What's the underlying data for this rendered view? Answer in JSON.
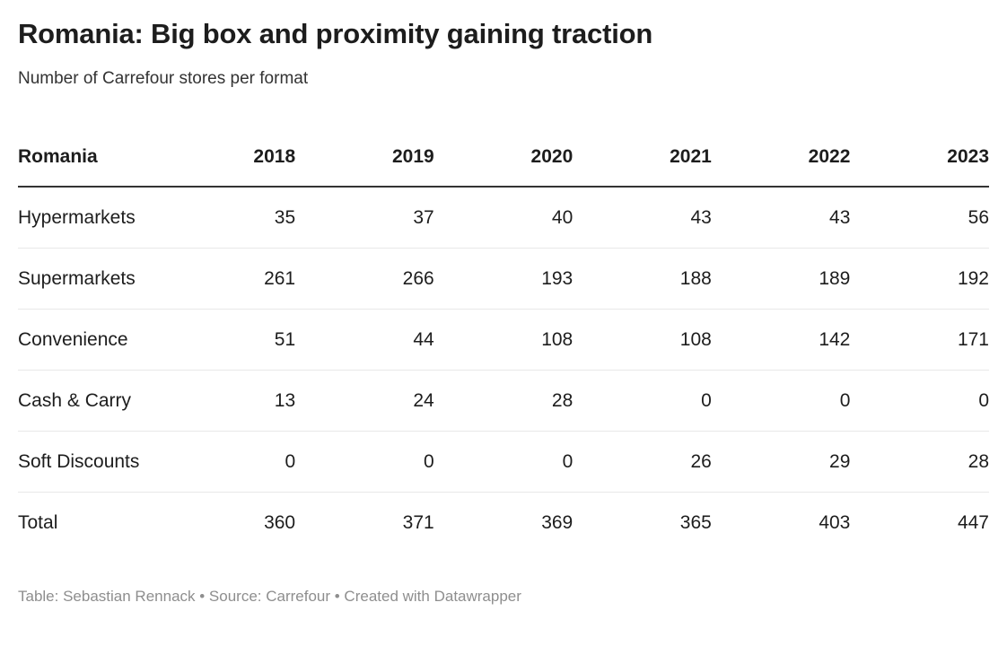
{
  "title": "Romania: Big box and proximity gaining traction",
  "subtitle": "Number of Carrefour stores per format",
  "table": {
    "corner_header": "Romania",
    "year_columns": [
      "2018",
      "2019",
      "2020",
      "2021",
      "2022",
      "2023"
    ],
    "rows": [
      {
        "label": "Hypermarkets",
        "values": [
          "35",
          "37",
          "40",
          "43",
          "43",
          "56"
        ]
      },
      {
        "label": "Supermarkets",
        "values": [
          "261",
          "266",
          "193",
          "188",
          "189",
          "192"
        ]
      },
      {
        "label": "Convenience",
        "values": [
          "51",
          "44",
          "108",
          "108",
          "142",
          "171"
        ]
      },
      {
        "label": "Cash & Carry",
        "values": [
          "13",
          "24",
          "28",
          "0",
          "0",
          "0"
        ]
      },
      {
        "label": "Soft Discounts",
        "values": [
          "0",
          "0",
          "0",
          "26",
          "29",
          "28"
        ]
      },
      {
        "label": "Total",
        "values": [
          "360",
          "371",
          "369",
          "365",
          "403",
          "447"
        ]
      }
    ]
  },
  "footer": {
    "attribution": "Table: Sebastian Rennack • Source: Carrefour • Created with Datawrapper"
  },
  "colors": {
    "background": "#ffffff",
    "text": "#1d1d1d",
    "subtitle_text": "#333333",
    "header_rule": "#333333",
    "row_divider": "#e8e8e8",
    "footer_text": "#8e8e8e"
  },
  "chart_data": {
    "type": "table",
    "title": "Romania: Big box and proximity gaining traction",
    "subtitle": "Number of Carrefour stores per format",
    "columns": [
      "Romania",
      "2018",
      "2019",
      "2020",
      "2021",
      "2022",
      "2023"
    ],
    "rows": [
      [
        "Hypermarkets",
        35,
        37,
        40,
        43,
        43,
        56
      ],
      [
        "Supermarkets",
        261,
        266,
        193,
        188,
        189,
        192
      ],
      [
        "Convenience",
        51,
        44,
        108,
        108,
        142,
        171
      ],
      [
        "Cash & Carry",
        13,
        24,
        28,
        0,
        0,
        0
      ],
      [
        "Soft Discounts",
        0,
        0,
        0,
        26,
        29,
        28
      ],
      [
        "Total",
        360,
        371,
        369,
        365,
        403,
        447
      ]
    ],
    "notes": "Table: Sebastian Rennack • Source: Carrefour • Created with Datawrapper"
  }
}
